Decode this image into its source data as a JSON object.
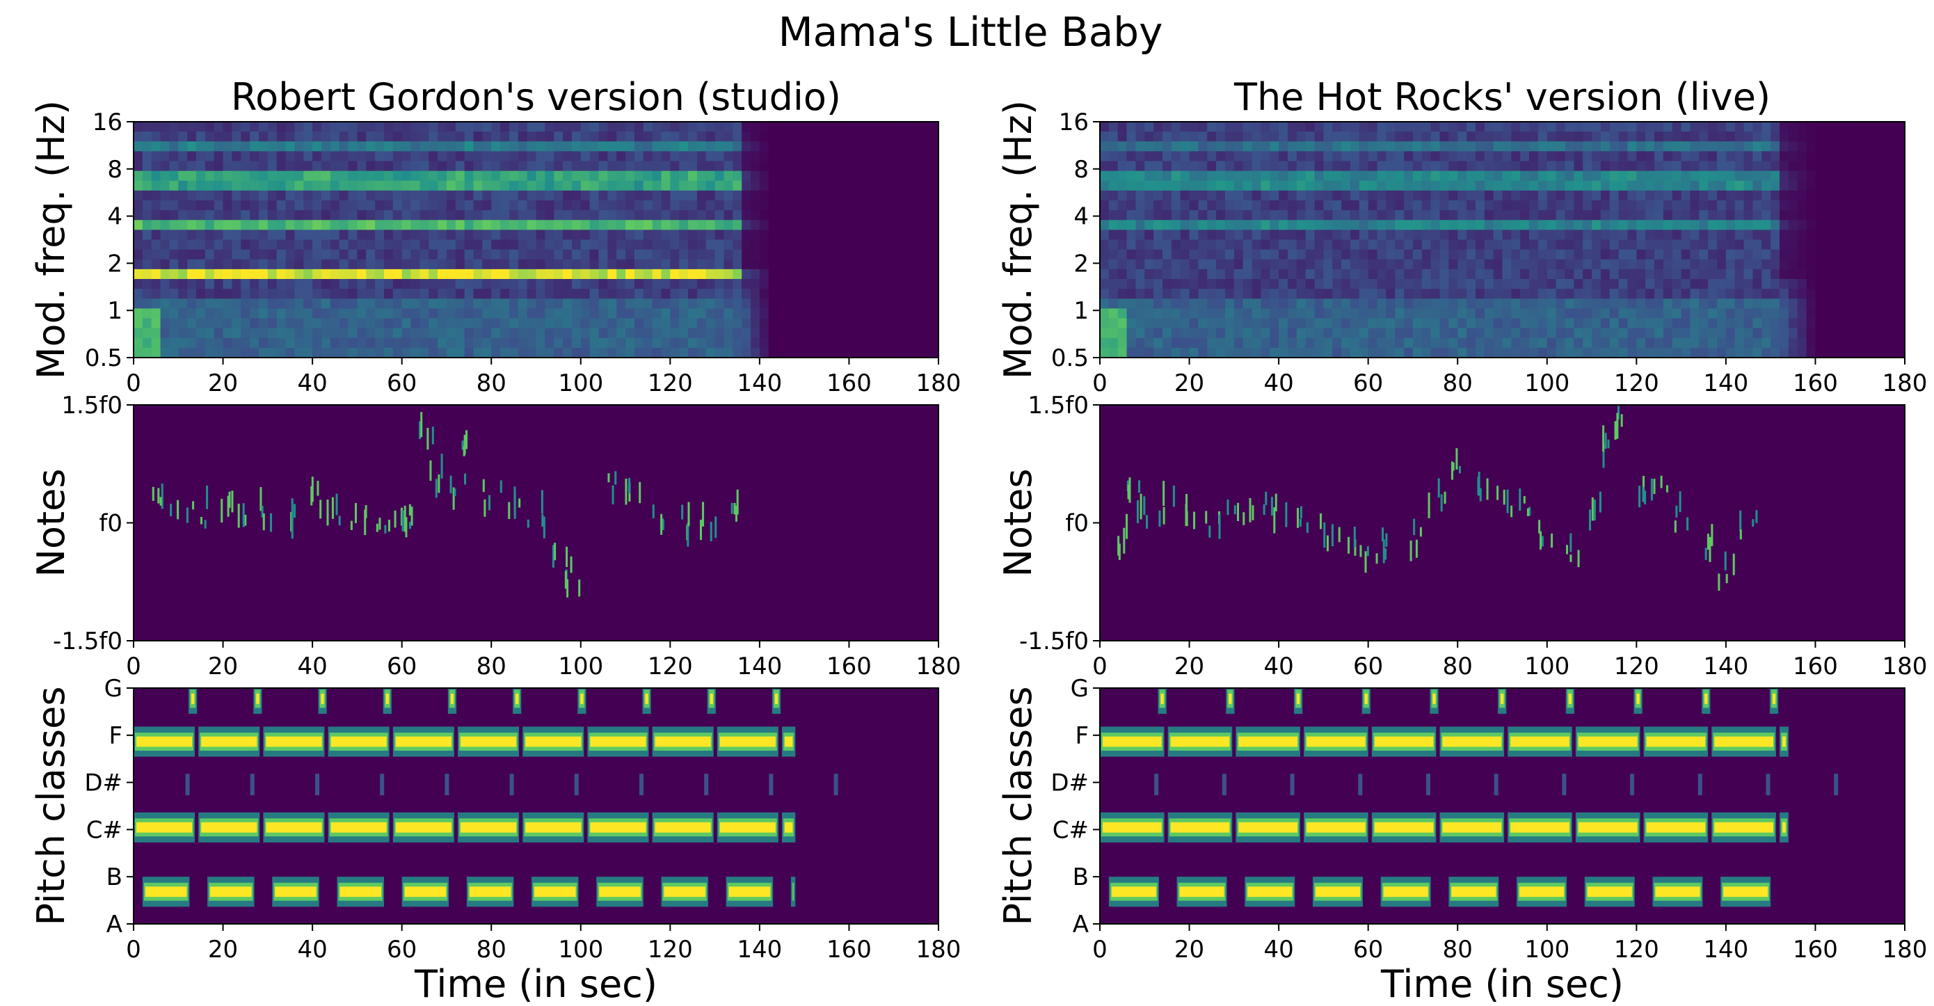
{
  "figure_title": "Mama's Little Baby",
  "colors": {
    "viridis_dark": "#440154",
    "viridis_blue": "#3b528b",
    "viridis_teal": "#21918c",
    "viridis_green": "#5ec962",
    "viridis_yellow": "#fde725"
  },
  "chart_data": [
    {
      "type": "heatmap",
      "row": 1,
      "column": 1,
      "title": "Robert Gordon's version (studio)",
      "xlabel": "",
      "ylabel": "Mod. freq. (Hz)",
      "xlim": [
        0,
        180
      ],
      "xticks": [
        "0",
        "20",
        "40",
        "60",
        "80",
        "100",
        "120",
        "140",
        "160",
        "180"
      ],
      "ylim": [
        0.5,
        16
      ],
      "yscale": "log2",
      "yticks": [
        "0.5",
        "1",
        "2",
        "4",
        "8",
        "16"
      ],
      "signal_end_sec": 135,
      "bands": [
        {
          "y": 1.75,
          "intensity": 0.85
        },
        {
          "y": 3.4,
          "intensity": 0.55
        },
        {
          "y": 6.8,
          "intensity": 0.45
        },
        {
          "y": 10.5,
          "intensity": 0.25
        }
      ]
    },
    {
      "type": "heatmap",
      "row": 1,
      "column": 2,
      "title": "The Hot Rocks' version (live)",
      "xlabel": "",
      "ylabel": "Mod. freq. (Hz)",
      "xlim": [
        0,
        180
      ],
      "xticks": [
        "0",
        "20",
        "40",
        "60",
        "80",
        "100",
        "120",
        "140",
        "160",
        "180"
      ],
      "ylim": [
        0.5,
        16
      ],
      "yscale": "log2",
      "yticks": [
        "0.5",
        "1",
        "2",
        "4",
        "8",
        "16"
      ],
      "signal_end_sec": 152,
      "bands": [
        {
          "y": 3.4,
          "intensity": 0.3
        },
        {
          "y": 6.8,
          "intensity": 0.3
        },
        {
          "y": 10.5,
          "intensity": 0.2
        }
      ]
    },
    {
      "type": "heatmap",
      "row": 2,
      "column": 1,
      "title": "",
      "xlabel": "",
      "ylabel": "Notes",
      "xlim": [
        0,
        180
      ],
      "xticks": [
        "0",
        "20",
        "40",
        "60",
        "80",
        "100",
        "120",
        "140",
        "160",
        "180"
      ],
      "ylim": [
        -1.5,
        1.5
      ],
      "yticks": [
        "-1.5f0",
        "f0",
        "1.5f0"
      ],
      "contour": [
        [
          5,
          0.25
        ],
        [
          10,
          0.2
        ],
        [
          15,
          0.15
        ],
        [
          20,
          0.2
        ],
        [
          25,
          0.1
        ],
        [
          30,
          0.15
        ],
        [
          35,
          0.05
        ],
        [
          40,
          0.3
        ],
        [
          45,
          0.2
        ],
        [
          50,
          0.05
        ],
        [
          55,
          0.0
        ],
        [
          60,
          0.0
        ],
        [
          62,
          0.05
        ],
        [
          65,
          1.2
        ],
        [
          68,
          0.6
        ],
        [
          72,
          0.4
        ],
        [
          75,
          1.0
        ],
        [
          80,
          0.3
        ],
        [
          85,
          0.2
        ],
        [
          90,
          0.1
        ],
        [
          95,
          -0.5
        ],
        [
          98,
          -0.7
        ],
        [
          108,
          0.4
        ],
        [
          112,
          0.3
        ],
        [
          118,
          0.1
        ],
        [
          122,
          0.0
        ],
        [
          128,
          0.0
        ],
        [
          133,
          0.1
        ]
      ]
    },
    {
      "type": "heatmap",
      "row": 2,
      "column": 2,
      "title": "",
      "xlabel": "",
      "ylabel": "Notes",
      "xlim": [
        0,
        180
      ],
      "xticks": [
        "0",
        "20",
        "40",
        "60",
        "80",
        "100",
        "120",
        "140",
        "160",
        "180"
      ],
      "ylim": [
        -1.5,
        1.5
      ],
      "yticks": [
        "-1.5f0",
        "f0",
        "1.5f0"
      ],
      "contour": [
        [
          5,
          -0.2
        ],
        [
          8,
          0.5
        ],
        [
          10,
          0.15
        ],
        [
          15,
          0.2
        ],
        [
          20,
          0.1
        ],
        [
          25,
          0.05
        ],
        [
          30,
          0.15
        ],
        [
          35,
          0.3
        ],
        [
          40,
          0.2
        ],
        [
          45,
          0.05
        ],
        [
          50,
          -0.1
        ],
        [
          55,
          -0.3
        ],
        [
          60,
          -0.4
        ],
        [
          65,
          -0.3
        ],
        [
          70,
          -0.2
        ],
        [
          75,
          0.3
        ],
        [
          80,
          0.7
        ],
        [
          85,
          0.5
        ],
        [
          90,
          0.3
        ],
        [
          95,
          0.2
        ],
        [
          100,
          -0.1
        ],
        [
          105,
          -0.4
        ],
        [
          110,
          0.2
        ],
        [
          113,
          0.9
        ],
        [
          115,
          1.3
        ],
        [
          120,
          0.4
        ],
        [
          125,
          0.5
        ],
        [
          130,
          0.1
        ],
        [
          135,
          -0.3
        ],
        [
          140,
          -0.6
        ],
        [
          145,
          0.0
        ]
      ]
    },
    {
      "type": "heatmap",
      "row": 3,
      "column": 1,
      "title": "",
      "xlabel": "Time (in sec)",
      "ylabel": "Pitch classes",
      "xlim": [
        0,
        180
      ],
      "xticks": [
        "0",
        "20",
        "40",
        "60",
        "80",
        "100",
        "120",
        "140",
        "160",
        "180"
      ],
      "ylim": [
        0,
        11
      ],
      "yticks": [
        "A",
        "B",
        "C#",
        "D#",
        "F",
        "G"
      ],
      "signal_end_sec": 148,
      "chord_period_sec": 14.5,
      "active_bins": [
        {
          "bin": 1,
          "label": "B"
        },
        {
          "bin": 4,
          "label": "C#"
        },
        {
          "bin": 8,
          "label": "F"
        },
        {
          "bin": 10,
          "label": "G"
        }
      ]
    },
    {
      "type": "heatmap",
      "row": 3,
      "column": 2,
      "title": "",
      "xlabel": "Time (in sec)",
      "ylabel": "Pitch classes",
      "xlim": [
        0,
        180
      ],
      "xticks": [
        "0",
        "20",
        "40",
        "60",
        "80",
        "100",
        "120",
        "140",
        "160",
        "180"
      ],
      "ylim": [
        0,
        11
      ],
      "yticks": [
        "A",
        "B",
        "C#",
        "D#",
        "F",
        "G"
      ],
      "signal_end_sec": 154,
      "chord_period_sec": 15.2,
      "active_bins": [
        {
          "bin": 1,
          "label": "B"
        },
        {
          "bin": 4,
          "label": "C#"
        },
        {
          "bin": 8,
          "label": "F"
        },
        {
          "bin": 10,
          "label": "G"
        }
      ]
    }
  ]
}
